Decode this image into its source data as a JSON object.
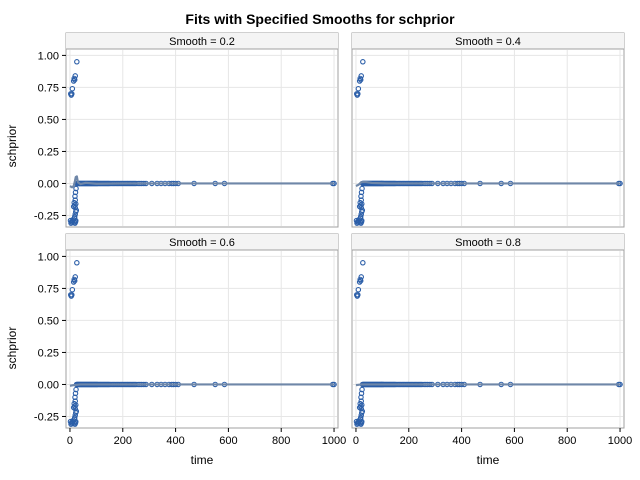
{
  "title": "Fits with Specified Smooths for schprior",
  "colors": {
    "point": "#2b5ea8",
    "fit": "#6f87a8",
    "grid": "#e6e6e6",
    "frame": "#a0a0a0",
    "header_bg": "#f4f4f4",
    "outer_frame": "#c8c8c8"
  },
  "chart_data": {
    "type": "scatter",
    "xlabel": "time",
    "ylabel": "schprior",
    "xlim": [
      -15,
      1015
    ],
    "ylim": [
      -0.34,
      1.05
    ],
    "xticks": [
      "0",
      "200",
      "400",
      "600",
      "800",
      "1000"
    ],
    "yticks": [
      "-0.25",
      "0.00",
      "0.25",
      "0.50",
      "0.75",
      "1.00"
    ],
    "grid": true,
    "panels": [
      {
        "label": "Smooth = 0.2",
        "fit": [
          [
            0,
            -0.02
          ],
          [
            8,
            -0.03
          ],
          [
            14,
            -0.02
          ],
          [
            18,
            0.01
          ],
          [
            22,
            0.05
          ],
          [
            26,
            0.055
          ],
          [
            30,
            0.01
          ],
          [
            40,
            -0.005
          ],
          [
            60,
            0.005
          ],
          [
            100,
            -0.002
          ],
          [
            200,
            0.0
          ],
          [
            400,
            0.0
          ],
          [
            600,
            0.0
          ],
          [
            1000,
            0.0
          ]
        ]
      },
      {
        "label": "Smooth = 0.4",
        "fit": [
          [
            0,
            -0.02
          ],
          [
            10,
            -0.01
          ],
          [
            20,
            0.01
          ],
          [
            35,
            0.012
          ],
          [
            60,
            0.004
          ],
          [
            120,
            0.0
          ],
          [
            300,
            0.0
          ],
          [
            600,
            0.0
          ],
          [
            1000,
            0.0
          ]
        ]
      },
      {
        "label": "Smooth = 0.6",
        "fit": [
          [
            0,
            -0.01
          ],
          [
            15,
            -0.005
          ],
          [
            40,
            0.0
          ],
          [
            100,
            0.0
          ],
          [
            300,
            0.0
          ],
          [
            600,
            0.0
          ],
          [
            1000,
            0.0
          ]
        ]
      },
      {
        "label": "Smooth = 0.8",
        "fit": [
          [
            0,
            -0.005
          ],
          [
            20,
            0.0
          ],
          [
            100,
            0.0
          ],
          [
            400,
            0.0
          ],
          [
            1000,
            0.0
          ]
        ]
      }
    ],
    "points": [
      [
        3,
        0.7
      ],
      [
        5,
        0.69
      ],
      [
        7,
        0.7
      ],
      [
        9,
        0.74
      ],
      [
        14,
        0.8
      ],
      [
        16,
        0.82
      ],
      [
        20,
        0.84
      ],
      [
        18,
        0.81
      ],
      [
        26,
        0.95
      ],
      [
        2,
        -0.29
      ],
      [
        4,
        -0.31
      ],
      [
        6,
        -0.3
      ],
      [
        8,
        -0.3
      ],
      [
        10,
        -0.29
      ],
      [
        13,
        -0.28
      ],
      [
        15,
        -0.3
      ],
      [
        17,
        -0.27
      ],
      [
        14,
        -0.18
      ],
      [
        16,
        -0.15
      ],
      [
        18,
        -0.17
      ],
      [
        20,
        -0.19
      ],
      [
        22,
        -0.16
      ],
      [
        19,
        -0.1
      ],
      [
        21,
        -0.07
      ],
      [
        23,
        -0.04
      ],
      [
        20,
        -0.13
      ],
      [
        24,
        -0.21
      ],
      [
        22,
        -0.22
      ],
      [
        20,
        -0.24
      ],
      [
        18,
        -0.26
      ],
      [
        22,
        -0.29
      ],
      [
        19,
        -0.31
      ],
      [
        21,
        -0.3
      ],
      [
        25,
        0.0
      ],
      [
        27,
        0.0
      ],
      [
        29,
        0.0
      ],
      [
        31,
        0.0
      ],
      [
        33,
        0.0
      ],
      [
        35,
        0.0
      ],
      [
        37,
        0.0
      ],
      [
        39,
        0.0
      ],
      [
        41,
        0.0
      ],
      [
        43,
        0.0
      ],
      [
        45,
        0.0
      ],
      [
        47,
        0.0
      ],
      [
        49,
        0.0
      ],
      [
        51,
        0.0
      ],
      [
        53,
        0.0
      ],
      [
        55,
        0.0
      ],
      [
        57,
        0.0
      ],
      [
        59,
        0.0
      ],
      [
        61,
        0.0
      ],
      [
        63,
        0.0
      ],
      [
        65,
        0.0
      ],
      [
        67,
        0.0
      ],
      [
        69,
        0.0
      ],
      [
        71,
        0.0
      ],
      [
        73,
        0.0
      ],
      [
        75,
        0.0
      ],
      [
        77,
        0.0
      ],
      [
        79,
        0.0
      ],
      [
        81,
        0.0
      ],
      [
        83,
        0.0
      ],
      [
        85,
        0.0
      ],
      [
        87,
        0.0
      ],
      [
        89,
        0.0
      ],
      [
        91,
        0.0
      ],
      [
        93,
        0.0
      ],
      [
        95,
        0.0
      ],
      [
        97,
        0.0
      ],
      [
        99,
        0.0
      ],
      [
        101,
        0.0
      ],
      [
        103,
        0.0
      ],
      [
        105,
        0.0
      ],
      [
        108,
        0.0
      ],
      [
        111,
        0.0
      ],
      [
        114,
        0.0
      ],
      [
        117,
        0.0
      ],
      [
        120,
        0.0
      ],
      [
        123,
        0.0
      ],
      [
        126,
        0.0
      ],
      [
        129,
        0.0
      ],
      [
        132,
        0.0
      ],
      [
        135,
        0.0
      ],
      [
        138,
        0.0
      ],
      [
        141,
        0.0
      ],
      [
        144,
        0.0
      ],
      [
        147,
        0.0
      ],
      [
        150,
        0.0
      ],
      [
        155,
        0.0
      ],
      [
        160,
        0.0
      ],
      [
        165,
        0.0
      ],
      [
        170,
        0.0
      ],
      [
        175,
        0.0
      ],
      [
        180,
        0.0
      ],
      [
        185,
        0.0
      ],
      [
        190,
        0.0
      ],
      [
        195,
        0.0
      ],
      [
        200,
        0.0
      ],
      [
        205,
        0.0
      ],
      [
        210,
        0.0
      ],
      [
        215,
        0.0
      ],
      [
        220,
        0.0
      ],
      [
        225,
        0.0
      ],
      [
        230,
        0.0
      ],
      [
        235,
        0.0
      ],
      [
        240,
        0.0
      ],
      [
        245,
        0.0
      ],
      [
        250,
        0.0
      ],
      [
        258,
        0.0
      ],
      [
        265,
        0.0
      ],
      [
        272,
        0.0
      ],
      [
        280,
        0.0
      ],
      [
        288,
        0.0
      ],
      [
        310,
        0.0
      ],
      [
        330,
        0.0
      ],
      [
        345,
        0.0
      ],
      [
        360,
        0.0
      ],
      [
        375,
        0.0
      ],
      [
        385,
        0.0
      ],
      [
        392,
        0.0
      ],
      [
        400,
        0.0
      ],
      [
        410,
        0.0
      ],
      [
        470,
        0.0
      ],
      [
        550,
        0.0
      ],
      [
        585,
        0.0
      ],
      [
        995,
        0.0
      ],
      [
        1000,
        0.0
      ]
    ]
  }
}
